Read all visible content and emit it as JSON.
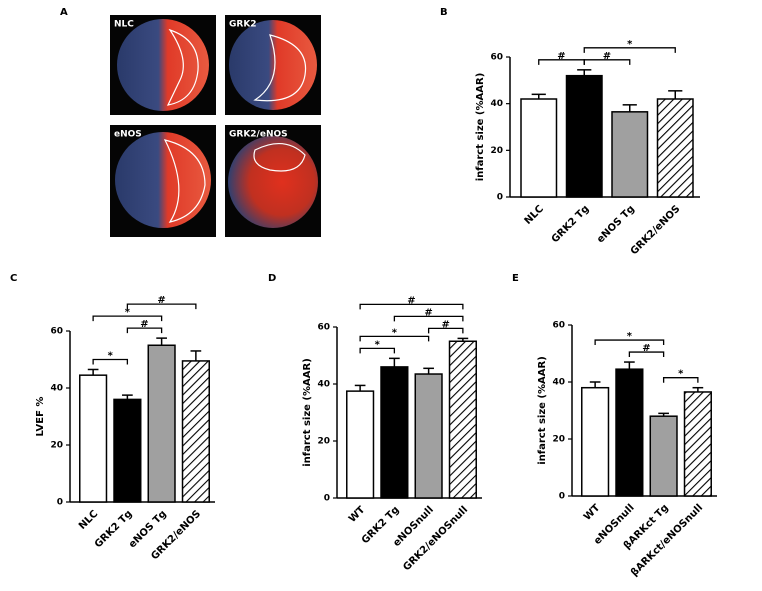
{
  "panel_a": {
    "panel": "A",
    "images": [
      "NLC",
      "GRK2",
      "eNOS",
      "GRK2/eNOS"
    ]
  },
  "chart_data": [
    {
      "type": "bar",
      "panel": "B",
      "ylabel": "infarct size (%AAR)",
      "categories": [
        "NLC",
        "GRK2 Tg",
        "eNOS Tg",
        "GRK2/eNOS"
      ],
      "values": [
        42,
        52,
        36.5,
        42
      ],
      "errors": [
        2,
        2.5,
        3,
        3.5
      ],
      "fills": [
        "white",
        "black",
        "gray",
        "hatch"
      ],
      "ylim": [
        0,
        60
      ],
      "yticks": [
        0,
        20,
        40,
        60
      ],
      "brackets": [
        {
          "from": 0,
          "to": 1,
          "label": "#"
        },
        {
          "from": 1,
          "to": 2,
          "label": "#"
        },
        {
          "from": 1,
          "to": 3,
          "label": "*"
        }
      ]
    },
    {
      "type": "bar",
      "panel": "C",
      "ylabel": "LVEF %",
      "categories": [
        "NLC",
        "GRK2 Tg",
        "eNOS Tg",
        "GRK2/eNOS"
      ],
      "values": [
        44.5,
        36,
        55,
        49.5
      ],
      "errors": [
        2,
        1.5,
        2.5,
        3.5
      ],
      "fills": [
        "white",
        "black",
        "gray",
        "hatch"
      ],
      "ylim": [
        0,
        60
      ],
      "yticks": [
        0,
        20,
        40,
        60
      ],
      "brackets": [
        {
          "from": 0,
          "to": 1,
          "label": "*"
        },
        {
          "from": 1,
          "to": 2,
          "label": "#"
        },
        {
          "from": 0,
          "to": 2,
          "label": "*"
        },
        {
          "from": 1,
          "to": 3,
          "label": "#"
        }
      ]
    },
    {
      "type": "bar",
      "panel": "D",
      "ylabel": "infarct size (%AAR)",
      "categories": [
        "WT",
        "GRK2 Tg",
        "eNOSnull",
        "GRK2/eNOSnull"
      ],
      "values": [
        37.5,
        46,
        43.5,
        55
      ],
      "errors": [
        2,
        3,
        2,
        1
      ],
      "fills": [
        "white",
        "black",
        "gray",
        "hatch"
      ],
      "ylim": [
        0,
        60
      ],
      "yticks": [
        0,
        20,
        40,
        60
      ],
      "brackets": [
        {
          "from": 0,
          "to": 1,
          "label": "*"
        },
        {
          "from": 2,
          "to": 3,
          "label": "#"
        },
        {
          "from": 0,
          "to": 2,
          "label": "*"
        },
        {
          "from": 1,
          "to": 3,
          "label": "#"
        },
        {
          "from": 0,
          "to": 3,
          "label": "#"
        }
      ]
    },
    {
      "type": "bar",
      "panel": "E",
      "ylabel": "infarct size (%AAR)",
      "categories": [
        "WT",
        "eNOSnull",
        "βARKct Tg",
        "βARKct/eNOSnull"
      ],
      "values": [
        38,
        44.5,
        28,
        36.5
      ],
      "errors": [
        2,
        2.5,
        1,
        1.5
      ],
      "fills": [
        "white",
        "black",
        "gray",
        "hatch"
      ],
      "ylim": [
        0,
        60
      ],
      "yticks": [
        0,
        20,
        40,
        60
      ],
      "brackets": [
        {
          "from": 1,
          "to": 2,
          "label": "#"
        },
        {
          "from": 2,
          "to": 3,
          "label": "*"
        },
        {
          "from": 0,
          "to": 2,
          "label": "*"
        }
      ]
    }
  ]
}
